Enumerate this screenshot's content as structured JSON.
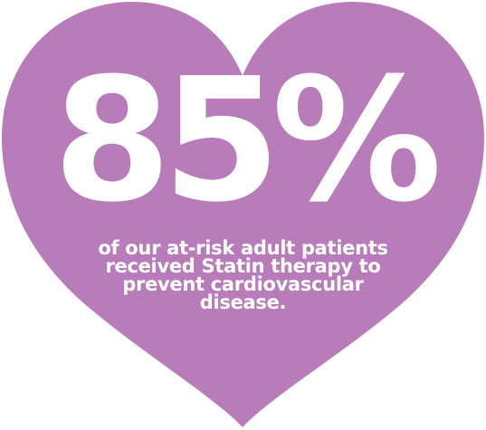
{
  "stat": {
    "value": "85%",
    "caption": "of our at-risk adult patients received Statin therapy to prevent cardiovascular disease."
  },
  "colors": {
    "heart": "#b97cba",
    "text": "#ffffff",
    "background": "#ffffff"
  }
}
